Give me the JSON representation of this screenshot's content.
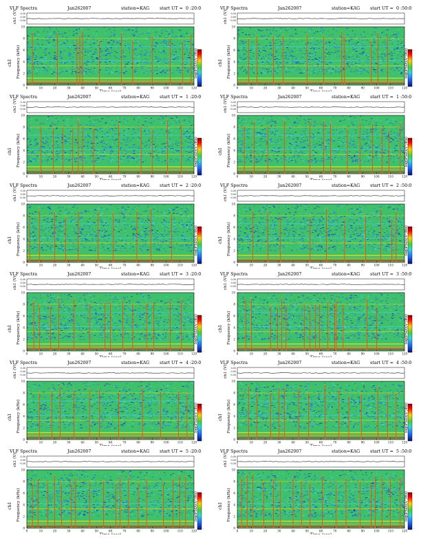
{
  "chart_data": [
    {
      "type": "heatmap",
      "title": "VLF Spectra",
      "date": "Jan262007",
      "station": "station=KAG",
      "start_label": "start  UT =",
      "start_value": "0 :20:0",
      "y1label": "ch1 (V)",
      "y1ticks": [
        "0.30",
        "0.00",
        "-0.30"
      ],
      "ylabel": "Frequency (kHz)",
      "ylabel_prefix": "ch1",
      "yticks": [
        "0",
        "2",
        "4",
        "6",
        "8",
        "10"
      ],
      "ylim": [
        0,
        10
      ],
      "xlabel": "Time (sec)",
      "xticks": [
        "0",
        "10",
        "20",
        "30",
        "40",
        "50",
        "60",
        "70",
        "80",
        "90",
        "100",
        "110",
        "120"
      ],
      "xlim": [
        0,
        120
      ],
      "colorbar_label": "log(PSD)(V²/Hz)",
      "colorbar_ticks": [
        "-",
        "-"
      ],
      "spikes": [
        4,
        22,
        36,
        38,
        40,
        52,
        68,
        76,
        90,
        103,
        112,
        118
      ]
    },
    {
      "type": "heatmap",
      "title": "VLF Spectra",
      "date": "Jan262007",
      "station": "station=KAG",
      "start_label": "start  UT =",
      "start_value": "0 :50:0",
      "y1label": "ch1 (V)",
      "y1ticks": [
        "0.30",
        "0.00",
        "-0.30"
      ],
      "ylabel": "Frequency (kHz)",
      "ylabel_prefix": "ch1",
      "yticks": [
        "0",
        "2",
        "4",
        "6",
        "8",
        "10"
      ],
      "ylim": [
        0,
        10
      ],
      "xlabel": "Time (sec)",
      "xticks": [
        "0",
        "10",
        "20",
        "30",
        "40",
        "50",
        "60",
        "70",
        "80",
        "90",
        "100",
        "110",
        "120"
      ],
      "xlim": [
        0,
        120
      ],
      "colorbar_label": "log(PSD)(V²/Hz)",
      "colorbar_ticks": [
        "-",
        "-"
      ],
      "spikes": [
        8,
        14,
        26,
        33,
        50,
        62,
        75,
        77,
        96,
        101,
        108
      ]
    },
    {
      "type": "heatmap",
      "title": "VLF Spectra",
      "date": "Jan262007",
      "station": "station=KAG",
      "start_label": "start  UT =",
      "start_value": "1 :20:0",
      "y1label": "ch1 (V)",
      "y1ticks": [
        "0.30",
        "0.00",
        "-0.30"
      ],
      "ylabel": "Frequency (kHz)",
      "ylabel_prefix": "ch1",
      "yticks": [
        "0",
        "2",
        "4",
        "6",
        "8",
        "10"
      ],
      "ylim": [
        0,
        10
      ],
      "xlabel": "Time (sec)",
      "xticks": [
        "0",
        "10",
        "20",
        "30",
        "40",
        "50",
        "60",
        "70",
        "80",
        "90",
        "100",
        "110",
        "120"
      ],
      "xlim": [
        0,
        120
      ],
      "colorbar_label": "log(PSD)(V²/Hz)",
      "colorbar_ticks": [
        "-",
        "-"
      ],
      "spikes": [
        10,
        19,
        26,
        33,
        37,
        40,
        48,
        66,
        82,
        90,
        101,
        111
      ]
    },
    {
      "type": "heatmap",
      "title": "VLF Spectra",
      "date": "Jan262007",
      "station": "station=KAG",
      "start_label": "start  UT =",
      "start_value": "1 :50:0",
      "y1label": "ch1 (V)",
      "y1ticks": [
        "0.30",
        "0.00",
        "-0.30"
      ],
      "ylabel": "Frequency (kHz)",
      "ylabel_prefix": "ch1",
      "yticks": [
        "0",
        "2",
        "4",
        "6",
        "8",
        "10"
      ],
      "ylim": [
        0,
        10
      ],
      "xlabel": "Time (sec)",
      "xticks": [
        "0",
        "10",
        "20",
        "30",
        "40",
        "50",
        "60",
        "70",
        "80",
        "90",
        "100",
        "110",
        "120"
      ],
      "xlim": [
        0,
        120
      ],
      "colorbar_label": "log(PSD)(V²/Hz)",
      "colorbar_ticks": [
        "-",
        "-"
      ],
      "spikes": [
        5,
        12,
        22,
        34,
        52,
        62,
        67,
        79,
        88,
        97,
        104,
        109,
        117
      ]
    },
    {
      "type": "heatmap",
      "title": "VLF Spectra",
      "date": "Jan262007",
      "station": "station=KAG",
      "start_label": "start  UT =",
      "start_value": "2 :20:0",
      "y1label": "ch1 (V)",
      "y1ticks": [
        "0.30",
        "0.00",
        "-0.30"
      ],
      "ylabel": "Frequency (kHz)",
      "ylabel_prefix": "ch1",
      "yticks": [
        "0",
        "2",
        "4",
        "6",
        "8",
        "10"
      ],
      "ylim": [
        0,
        10
      ],
      "xlabel": "Time (sec)",
      "xticks": [
        "0",
        "10",
        "20",
        "30",
        "40",
        "50",
        "60",
        "70",
        "80",
        "90",
        "100",
        "110",
        "120"
      ],
      "xlim": [
        0,
        120
      ],
      "colorbar_label": "log(PSD)(V²/Hz)",
      "colorbar_ticks": [
        "-",
        "-"
      ],
      "spikes": [
        2,
        9,
        20,
        28,
        37,
        51,
        62,
        79,
        89,
        104
      ]
    },
    {
      "type": "heatmap",
      "title": "VLF Spectra",
      "date": "Jan262007",
      "station": "station=KAG",
      "start_label": "start  UT =",
      "start_value": "2 :50:0",
      "y1label": "ch1 (V)",
      "y1ticks": [
        "0.30",
        "0.00",
        "-0.30"
      ],
      "ylabel": "Frequency (kHz)",
      "ylabel_prefix": "ch1",
      "yticks": [
        "0",
        "2",
        "4",
        "6",
        "8",
        "10"
      ],
      "ylim": [
        0,
        10
      ],
      "xlabel": "Time (sec)",
      "xticks": [
        "0",
        "10",
        "20",
        "30",
        "40",
        "50",
        "60",
        "70",
        "80",
        "90",
        "100",
        "110",
        "120"
      ],
      "xlim": [
        0,
        120
      ],
      "colorbar_label": "log(PSD)(V²/Hz)",
      "colorbar_ticks": [
        "-",
        "-"
      ],
      "spikes": [
        11,
        22,
        31,
        52,
        64,
        77,
        92,
        103,
        111,
        114
      ]
    },
    {
      "type": "heatmap",
      "title": "VLF Spectra",
      "date": "Jan262007",
      "station": "station=KAG",
      "start_label": "start  UT =",
      "start_value": "3 :20:0",
      "y1label": "ch1 (V)",
      "y1ticks": [
        "0.30",
        "0.00",
        "-0.30"
      ],
      "ylabel": "Frequency (kHz)",
      "ylabel_prefix": "ch1",
      "yticks": [
        "0",
        "2",
        "4",
        "6",
        "8",
        "10"
      ],
      "ylim": [
        0,
        10
      ],
      "xlabel": "Time (sec)",
      "xticks": [
        "0",
        "10",
        "20",
        "30",
        "40",
        "50",
        "60",
        "70",
        "80",
        "90",
        "100",
        "110",
        "120"
      ],
      "xlim": [
        0,
        120
      ],
      "colorbar_label": "log(PSD)(V²/Hz)",
      "colorbar_ticks": [
        "-",
        "-"
      ],
      "spikes": [
        5,
        9,
        17,
        23,
        34,
        45,
        56,
        60,
        69,
        76,
        86,
        91,
        103,
        111
      ]
    },
    {
      "type": "heatmap",
      "title": "VLF Spectra",
      "date": "Jan262007",
      "station": "station=KAG",
      "start_label": "start  UT =",
      "start_value": "3 :50:0",
      "y1label": "ch1 (V)",
      "y1ticks": [
        "0.30",
        "0.00",
        "-0.30"
      ],
      "ylabel": "Frequency (kHz)",
      "ylabel_prefix": "ch1",
      "yticks": [
        "0",
        "2",
        "4",
        "6",
        "8",
        "10"
      ],
      "ylim": [
        0,
        10
      ],
      "xlabel": "Time (sec)",
      "xticks": [
        "0",
        "10",
        "20",
        "30",
        "40",
        "50",
        "60",
        "70",
        "80",
        "90",
        "100",
        "110",
        "120"
      ],
      "xlim": [
        0,
        120
      ],
      "colorbar_label": "log(PSD)(V²/Hz)",
      "colorbar_ticks": [
        "-",
        "-"
      ],
      "spikes": [
        6,
        10,
        24,
        29,
        32,
        35,
        48,
        52,
        56,
        59,
        65,
        70,
        71,
        76,
        93,
        100
      ]
    },
    {
      "type": "heatmap",
      "title": "VLF Spectra",
      "date": "Jan262007",
      "station": "station=KAG",
      "start_label": "start  UT =",
      "start_value": "4 :20:0",
      "y1label": "ch1 (V)",
      "y1ticks": [
        "0.30",
        "0.00",
        "-0.30"
      ],
      "ylabel": "Frequency (kHz)",
      "ylabel_prefix": "ch1",
      "yticks": [
        "0",
        "2",
        "4",
        "6",
        "8",
        "10"
      ],
      "ylim": [
        0,
        10
      ],
      "xlabel": "Time (sec)",
      "xticks": [
        "0",
        "10",
        "20",
        "30",
        "40",
        "50",
        "60",
        "70",
        "80",
        "90",
        "100",
        "110",
        "120"
      ],
      "xlim": [
        0,
        120
      ],
      "colorbar_label": "log(PSD)(V²/Hz)",
      "colorbar_ticks": [
        "-",
        "-"
      ],
      "spikes": [
        9,
        18,
        24,
        34,
        45,
        52,
        66,
        83,
        96,
        109,
        115
      ]
    },
    {
      "type": "heatmap",
      "title": "VLF Spectra",
      "date": "Jan262007",
      "station": "station=KAG",
      "start_label": "start  UT =",
      "start_value": "4 :50:0",
      "y1label": "ch1 (V)",
      "y1ticks": [
        "0.30",
        "0.00",
        "-0.30"
      ],
      "ylabel": "Frequency (kHz)",
      "ylabel_prefix": "ch1",
      "yticks": [
        "0",
        "2",
        "4",
        "6",
        "8",
        "10"
      ],
      "ylim": [
        0,
        10
      ],
      "xlabel": "Time (sec)",
      "xticks": [
        "0",
        "10",
        "20",
        "30",
        "40",
        "50",
        "60",
        "70",
        "80",
        "90",
        "100",
        "110",
        "120"
      ],
      "xlim": [
        0,
        120
      ],
      "colorbar_label": "log(PSD)(V²/Hz)",
      "colorbar_ticks": [
        "-",
        "-"
      ],
      "spikes": [
        8,
        14,
        24,
        30,
        34,
        44,
        51,
        63,
        73,
        80,
        89,
        101,
        108,
        114
      ]
    },
    {
      "type": "heatmap",
      "title": "VLF Spectra",
      "date": "Jan262007",
      "station": "station=KAG",
      "start_label": "start  UT =",
      "start_value": "5 :20:0",
      "y1label": "ch1 (V)",
      "y1ticks": [
        "0.30",
        "0.00",
        "-0.30"
      ],
      "ylabel": "Frequency (kHz)",
      "ylabel_prefix": "ch1",
      "yticks": [
        "0",
        "2",
        "4",
        "6",
        "8",
        "10"
      ],
      "ylim": [
        0,
        10
      ],
      "xlabel": "Time (sec)",
      "xticks": [
        "0",
        "10",
        "20",
        "30",
        "40",
        "50",
        "60",
        "70",
        "80",
        "90",
        "100",
        "110",
        "120"
      ],
      "xlim": [
        0,
        120
      ],
      "colorbar_label": "log(PSD)(V²/Hz)",
      "colorbar_ticks": [
        "-",
        "-"
      ],
      "spikes": [
        4,
        8,
        15,
        20,
        25,
        32,
        35,
        45,
        55,
        64,
        67,
        73,
        80,
        86,
        98,
        105,
        110,
        114
      ]
    },
    {
      "type": "heatmap",
      "title": "VLF Spectra",
      "date": "Jan262007",
      "station": "station=KAG",
      "start_label": "start  UT =",
      "start_value": "5 :50:0",
      "y1label": "ch1 (V)",
      "y1ticks": [
        "0.30",
        "0.00",
        "-0.30"
      ],
      "ylabel": "Frequency (kHz)",
      "ylabel_prefix": "ch1",
      "yticks": [
        "0",
        "2",
        "4",
        "6",
        "8",
        "10"
      ],
      "ylim": [
        0,
        10
      ],
      "xlabel": "Time (sec)",
      "xticks": [
        "0",
        "10",
        "20",
        "30",
        "40",
        "50",
        "60",
        "70",
        "80",
        "90",
        "100",
        "110",
        "120"
      ],
      "xlim": [
        0,
        120
      ],
      "colorbar_label": "log(PSD)(V²/Hz)",
      "colorbar_ticks": [
        "-",
        "-"
      ],
      "spikes": [
        3,
        7,
        11,
        19,
        26,
        31,
        40,
        46,
        52,
        61,
        71,
        78,
        88,
        96,
        99,
        104,
        110,
        117
      ]
    }
  ],
  "colors": {
    "bg_green": "#3fc06a",
    "speckle_blue": "#2a6fe0",
    "speckle_cyan": "#46d3d9",
    "band_yellow": "#e6e020",
    "band_orange": "#f39a17",
    "band_red": "#d82a16",
    "deep_blue": "#1e2fb0"
  }
}
